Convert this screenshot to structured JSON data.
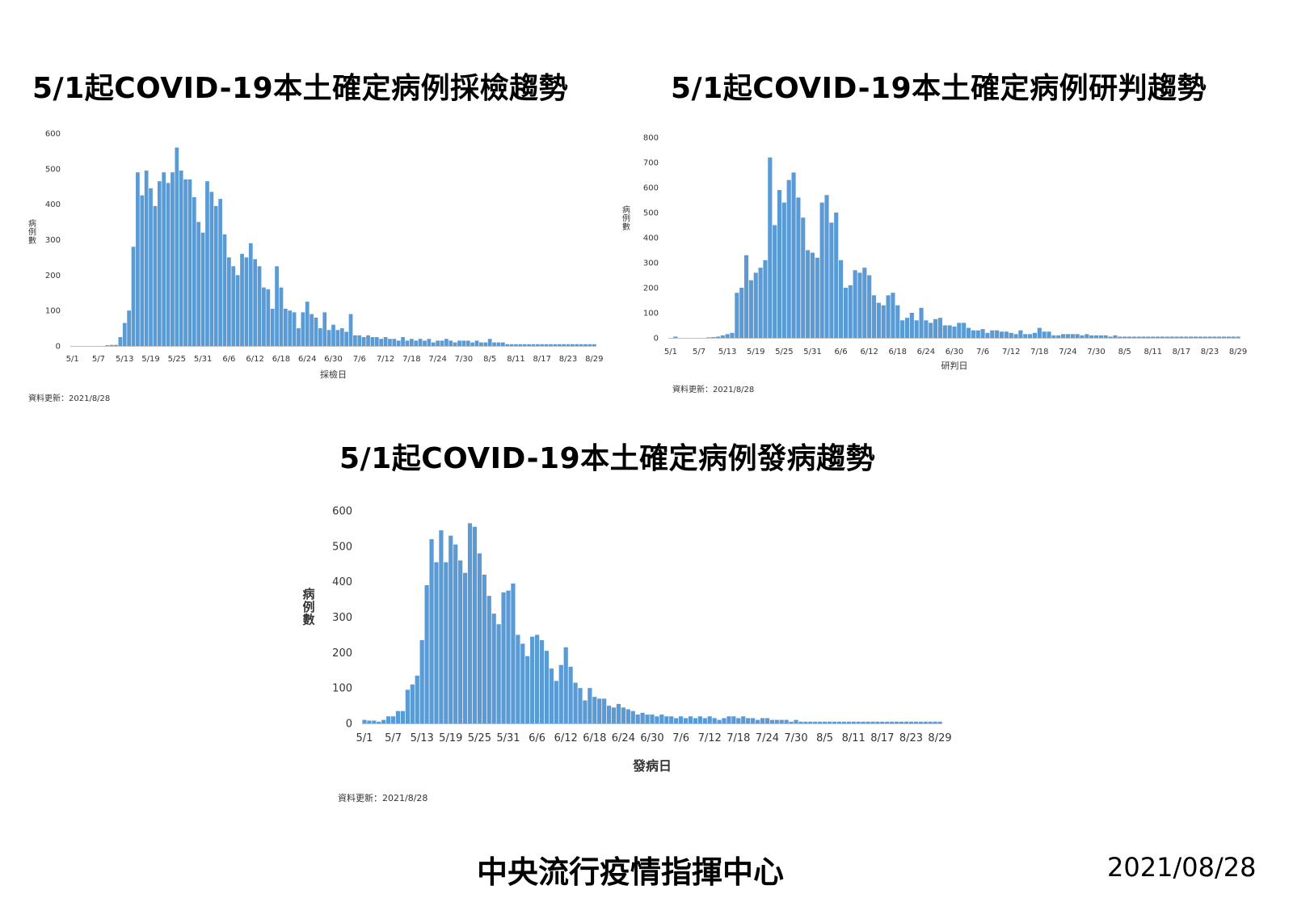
{
  "titles": {
    "chart1": "5/1起COVID-19本土確定病例採檢趨勢",
    "chart2": "5/1起COVID-19本土確定病例研判趨勢",
    "chart3": "5/1起COVID-19本土確定病例發病趨勢"
  },
  "footer": {
    "agency": "中央流行疫情指揮中心",
    "date": "2021/08/28"
  },
  "colors": {
    "bar": "#5b9bd5"
  },
  "chart_data": [
    {
      "type": "bar",
      "title": "5/1起COVID-19本土確定病例採檢趨勢",
      "xlabel": "採檢日",
      "ylabel": "病例數",
      "ylim": [
        0,
        600
      ],
      "yticks": [
        0,
        100,
        200,
        300,
        400,
        500,
        600
      ],
      "xticks": [
        "5/1",
        "5/7",
        "5/13",
        "5/19",
        "5/25",
        "5/31",
        "6/6",
        "6/12",
        "6/18",
        "6/24",
        "6/30",
        "7/6",
        "7/12",
        "7/18",
        "7/24",
        "7/30",
        "8/5",
        "8/11",
        "8/17",
        "8/23",
        "8/29"
      ],
      "start": "5/1",
      "note": "資料更新：2021/8/28",
      "values": [
        0,
        0,
        0,
        0,
        0,
        0,
        0,
        0,
        2,
        3,
        3,
        25,
        65,
        100,
        280,
        490,
        425,
        495,
        445,
        395,
        465,
        490,
        460,
        490,
        560,
        495,
        470,
        470,
        420,
        350,
        320,
        465,
        435,
        395,
        415,
        315,
        250,
        225,
        200,
        260,
        250,
        290,
        245,
        225,
        165,
        160,
        105,
        225,
        165,
        105,
        100,
        95,
        50,
        95,
        125,
        90,
        80,
        50,
        95,
        45,
        60,
        45,
        50,
        40,
        90,
        30,
        30,
        25,
        30,
        25,
        25,
        20,
        25,
        20,
        20,
        15,
        25,
        15,
        20,
        15,
        20,
        15,
        20,
        10,
        15,
        15,
        20,
        15,
        10,
        15,
        15,
        15,
        10,
        15,
        10,
        10,
        20,
        10,
        10,
        10,
        5,
        5,
        5,
        5,
        5,
        5,
        5,
        5,
        5,
        5,
        5,
        5,
        5,
        5,
        5,
        5,
        5,
        5,
        5,
        5,
        5
      ]
    },
    {
      "type": "bar",
      "title": "5/1起COVID-19本土確定病例研判趨勢",
      "xlabel": "研判日",
      "ylabel": "病例數",
      "ylim": [
        0,
        800
      ],
      "yticks": [
        0,
        100,
        200,
        300,
        400,
        500,
        600,
        700,
        800
      ],
      "xticks": [
        "5/1",
        "5/7",
        "5/13",
        "5/19",
        "5/25",
        "5/31",
        "6/6",
        "6/12",
        "6/18",
        "6/24",
        "6/30",
        "7/6",
        "7/12",
        "7/18",
        "7/24",
        "7/30",
        "8/5",
        "8/11",
        "8/17",
        "8/23",
        "8/29"
      ],
      "start": "5/1",
      "note": "資料更新：2021/8/28",
      "values": [
        0,
        5,
        0,
        0,
        0,
        0,
        0,
        0,
        2,
        3,
        5,
        10,
        15,
        20,
        180,
        200,
        330,
        230,
        260,
        280,
        310,
        720,
        450,
        590,
        540,
        630,
        660,
        560,
        480,
        350,
        340,
        320,
        540,
        570,
        460,
        500,
        310,
        200,
        210,
        270,
        260,
        280,
        250,
        170,
        140,
        130,
        170,
        180,
        130,
        70,
        80,
        100,
        70,
        120,
        70,
        60,
        75,
        80,
        50,
        50,
        45,
        60,
        60,
        40,
        30,
        30,
        35,
        20,
        30,
        30,
        25,
        25,
        20,
        15,
        30,
        15,
        15,
        20,
        40,
        25,
        25,
        10,
        10,
        15,
        15,
        15,
        15,
        10,
        15,
        10,
        10,
        10,
        10,
        5,
        10,
        5,
        5,
        5,
        5,
        5,
        5,
        5,
        5,
        5,
        5,
        5,
        5,
        5,
        5,
        5,
        5,
        5,
        5,
        5,
        5,
        5,
        5,
        5,
        5,
        5,
        5
      ]
    },
    {
      "type": "bar",
      "title": "5/1起COVID-19本土確定病例發病趨勢",
      "xlabel": "發病日",
      "ylabel": "病例數",
      "ylim": [
        0,
        600
      ],
      "yticks": [
        0,
        100,
        200,
        300,
        400,
        500,
        600
      ],
      "xticks": [
        "5/1",
        "5/7",
        "5/13",
        "5/19",
        "5/25",
        "5/31",
        "6/6",
        "6/12",
        "6/18",
        "6/24",
        "6/30",
        "7/6",
        "7/12",
        "7/18",
        "7/24",
        "7/30",
        "8/5",
        "8/11",
        "8/17",
        "8/23",
        "8/29"
      ],
      "start": "5/1",
      "note": "資料更新：2021/8/28",
      "values": [
        10,
        8,
        8,
        5,
        10,
        20,
        20,
        35,
        35,
        95,
        110,
        135,
        235,
        390,
        520,
        455,
        545,
        455,
        530,
        505,
        460,
        425,
        565,
        555,
        480,
        420,
        360,
        310,
        280,
        370,
        375,
        395,
        250,
        225,
        190,
        245,
        250,
        235,
        205,
        155,
        120,
        165,
        215,
        160,
        115,
        100,
        65,
        100,
        75,
        70,
        70,
        50,
        45,
        55,
        45,
        40,
        35,
        25,
        30,
        25,
        25,
        20,
        25,
        20,
        20,
        15,
        20,
        15,
        20,
        15,
        20,
        15,
        20,
        15,
        10,
        15,
        20,
        20,
        15,
        20,
        15,
        15,
        10,
        15,
        15,
        10,
        10,
        10,
        10,
        5,
        10,
        5,
        5,
        5,
        5,
        5,
        5,
        5,
        5,
        5,
        5,
        5,
        5,
        5,
        5,
        5,
        5,
        5,
        5,
        5,
        5,
        5,
        5,
        5,
        5,
        5,
        5,
        5,
        5,
        5,
        5
      ]
    }
  ]
}
